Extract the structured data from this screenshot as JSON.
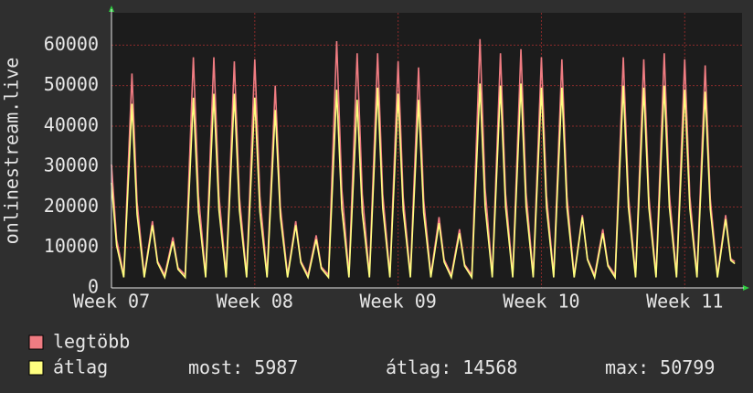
{
  "chart_data": {
    "type": "line",
    "y_label": "onlinestream.live",
    "x": [
      0,
      0.25,
      0.6,
      1,
      1.25,
      1.6,
      2,
      2.25,
      2.6,
      3,
      3.25,
      3.6,
      4,
      4.25,
      4.6,
      5,
      5.25,
      5.6,
      6,
      6.25,
      6.6,
      7,
      7.25,
      7.6,
      8,
      8.25,
      8.6,
      9,
      9.25,
      9.6,
      10,
      10.25,
      10.6,
      11,
      11.25,
      11.6,
      12,
      12.25,
      12.6,
      13,
      13.25,
      13.6,
      14,
      14.25,
      14.6,
      15,
      15.25,
      15.6,
      16,
      16.25,
      16.6,
      17,
      17.25,
      17.6,
      18,
      18.25,
      18.6,
      19,
      19.25,
      19.6,
      20,
      20.25,
      20.6,
      21,
      21.25,
      21.6,
      22,
      22.25,
      22.6,
      23,
      23.25,
      23.6,
      24,
      24.25,
      24.6,
      25,
      25.25,
      25.6,
      26,
      26.25,
      26.6,
      27,
      27.25,
      27.6,
      28,
      28.25,
      28.6,
      29,
      29.25,
      29.6,
      30,
      30.25,
      30.45
    ],
    "series": [
      {
        "name": "legtöbb",
        "color": "#f07c82",
        "values": [
          30500,
          12000,
          3200,
          53000,
          21200,
          3200,
          16500,
          6600,
          3200,
          12500,
          5000,
          3200,
          57000,
          22800,
          3200,
          57000,
          22800,
          3200,
          56000,
          22400,
          3200,
          56500,
          22600,
          3200,
          50000,
          20000,
          3200,
          16500,
          6600,
          3200,
          13000,
          5200,
          3200,
          61000,
          24400,
          3200,
          58000,
          23200,
          3200,
          58000,
          23200,
          3200,
          56000,
          22400,
          3200,
          54500,
          21800,
          3200,
          17500,
          7000,
          3200,
          14500,
          5800,
          3200,
          61500,
          24600,
          3200,
          58000,
          23200,
          3200,
          59000,
          23600,
          3200,
          57000,
          22800,
          3200,
          56500,
          22600,
          3200,
          18000,
          7200,
          3200,
          14500,
          5800,
          3200,
          57000,
          22800,
          3200,
          56500,
          22600,
          3200,
          58000,
          23200,
          3200,
          56500,
          22600,
          3200,
          55000,
          22000,
          3200,
          18000,
          7200,
          6500
        ]
      },
      {
        "name": "átlag",
        "color": "#ffff80",
        "values": [
          26000,
          10500,
          2600,
          45500,
          18200,
          2600,
          15500,
          6200,
          2600,
          11500,
          4600,
          2600,
          47000,
          18800,
          2600,
          48000,
          19200,
          2600,
          48000,
          19200,
          2600,
          47000,
          18800,
          2600,
          44000,
          17600,
          2600,
          15500,
          6200,
          2600,
          12000,
          4800,
          2600,
          49000,
          19600,
          2600,
          46500,
          18600,
          2600,
          49500,
          19800,
          2600,
          48000,
          19200,
          2600,
          46500,
          18600,
          2600,
          16000,
          6400,
          2600,
          13500,
          5400,
          2600,
          50500,
          20200,
          2600,
          50000,
          20000,
          2600,
          50500,
          20200,
          2600,
          49500,
          19800,
          2600,
          49500,
          19800,
          2600,
          17500,
          7000,
          2600,
          13500,
          5400,
          2600,
          50000,
          20000,
          2600,
          49500,
          19800,
          2600,
          50000,
          20000,
          2600,
          49000,
          19600,
          2600,
          48500,
          19400,
          2600,
          17000,
          6800,
          5987
        ]
      }
    ],
    "xlim": [
      0,
      30.8
    ],
    "xticks": [
      {
        "value": 0,
        "label": "Week 07"
      },
      {
        "value": 7,
        "label": "Week 08"
      },
      {
        "value": 14,
        "label": "Week 09"
      },
      {
        "value": 21,
        "label": "Week 10"
      },
      {
        "value": 28,
        "label": "Week 11"
      }
    ],
    "ylim": [
      0,
      68000
    ],
    "yticks": [
      0,
      10000,
      20000,
      30000,
      40000,
      50000,
      60000
    ],
    "grid": true,
    "stats": [
      {
        "label": "most:",
        "value": 5987
      },
      {
        "label": "átlag:",
        "value": 14568
      },
      {
        "label": "max:",
        "value": 50799
      }
    ]
  }
}
